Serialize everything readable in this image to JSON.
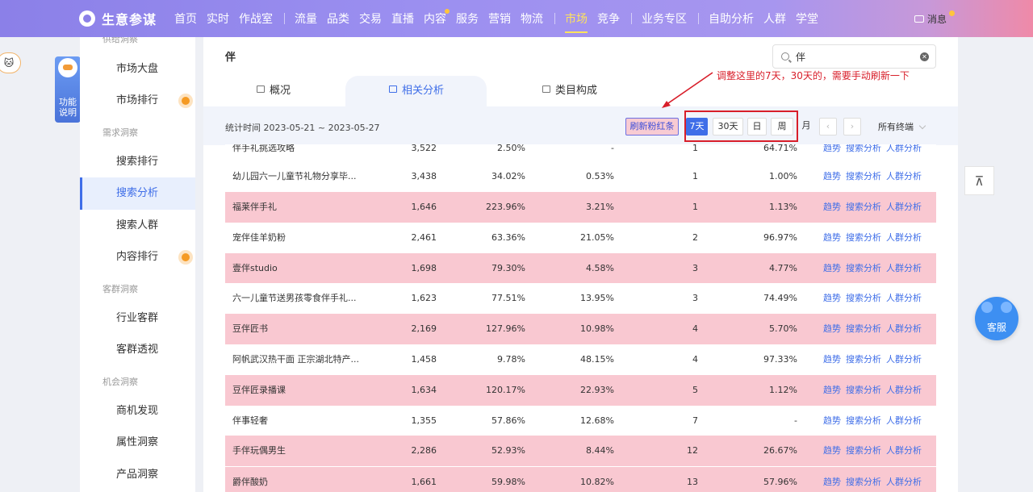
{
  "topnav": {
    "brand": "生意参谋",
    "items_group1": [
      "首页",
      "实时",
      "作战室"
    ],
    "items_group2": [
      "流量",
      "品类",
      "交易",
      "直播",
      "内容",
      "服务",
      "营销",
      "物流"
    ],
    "items_group3": [
      "市场",
      "竞争"
    ],
    "items_group4": [
      "业务专区"
    ],
    "items_group5": [
      "自助分析",
      "人群",
      "学堂"
    ],
    "active": "市场",
    "message": "消息"
  },
  "func_tab": {
    "line1": "功能",
    "line2": "说明"
  },
  "sidebar": {
    "top_section": "供给洞察",
    "items": [
      {
        "label": "市场大盘"
      },
      {
        "label": "市场排行"
      },
      {
        "label": "需求洞察",
        "section": true
      },
      {
        "label": "搜索排行"
      },
      {
        "label": "搜索分析"
      },
      {
        "label": "搜索人群"
      },
      {
        "label": "内容排行"
      },
      {
        "label": "客群洞察",
        "section": true
      },
      {
        "label": "行业客群"
      },
      {
        "label": "客群透视"
      },
      {
        "label": "机会洞察",
        "section": true
      },
      {
        "label": "商机发现"
      },
      {
        "label": "属性洞察"
      },
      {
        "label": "产品洞察"
      }
    ]
  },
  "main": {
    "keyword": "伴",
    "search_value": "伴",
    "tabs": [
      "概况",
      "相关分析",
      "类目构成"
    ],
    "active_tab": "相关分析",
    "stat_time": "统计时间 2023-05-21 ~ 2023-05-27",
    "refresh_button": "刷新粉红条",
    "period_buttons": [
      "7天",
      "30天",
      "日",
      "周",
      "月"
    ],
    "active_period": "7天",
    "terminal": "所有终端",
    "annotation": "调整这里的7天，30天的，需要手动刷新一下"
  },
  "table": {
    "ops": [
      "趋势",
      "搜索分析",
      "人群分析"
    ],
    "rows": [
      {
        "name": "伴手礼挑选攻略",
        "a": "3,522",
        "b": "2.50%",
        "c": "-",
        "d": "1",
        "e": "64.71%",
        "pink": false
      },
      {
        "name": "幼儿园六一儿童节礼物分享毕...",
        "a": "3,438",
        "b": "34.02%",
        "c": "0.53%",
        "d": "1",
        "e": "1.00%",
        "pink": false
      },
      {
        "name": "福莱伴手礼",
        "a": "1,646",
        "b": "223.96%",
        "c": "3.21%",
        "d": "1",
        "e": "1.13%",
        "pink": true
      },
      {
        "name": "宠伴佳羊奶粉",
        "a": "2,461",
        "b": "63.36%",
        "c": "21.05%",
        "d": "2",
        "e": "96.97%",
        "pink": false
      },
      {
        "name": "壹伴studio",
        "a": "1,698",
        "b": "79.30%",
        "c": "4.58%",
        "d": "3",
        "e": "4.77%",
        "pink": true
      },
      {
        "name": "六一儿童节送男孩零食伴手礼...",
        "a": "1,623",
        "b": "77.51%",
        "c": "13.95%",
        "d": "3",
        "e": "74.49%",
        "pink": false
      },
      {
        "name": "豆伴匠书",
        "a": "2,169",
        "b": "127.96%",
        "c": "10.98%",
        "d": "4",
        "e": "5.70%",
        "pink": true
      },
      {
        "name": "阿帆武汉热干面 正宗湖北特产...",
        "a": "1,458",
        "b": "9.78%",
        "c": "48.15%",
        "d": "4",
        "e": "97.33%",
        "pink": false
      },
      {
        "name": "豆伴匠录播课",
        "a": "1,634",
        "b": "120.17%",
        "c": "22.93%",
        "d": "5",
        "e": "1.12%",
        "pink": true
      },
      {
        "name": "伴事轻奢",
        "a": "1,355",
        "b": "57.86%",
        "c": "12.68%",
        "d": "7",
        "e": "-",
        "pink": false
      },
      {
        "name": "手伴玩偶男生",
        "a": "2,286",
        "b": "52.93%",
        "c": "8.44%",
        "d": "12",
        "e": "26.67%",
        "pink": true
      },
      {
        "name": "爵伴酸奶",
        "a": "1,661",
        "b": "59.98%",
        "c": "10.82%",
        "d": "13",
        "e": "57.96%",
        "pink": true
      }
    ]
  },
  "float": {
    "to_top": "⊼",
    "kefu": "客服"
  },
  "colors": {
    "accent": "#3f6ee8",
    "pink_row": "#f9c8d1",
    "annotation_red": "#d81e2a"
  }
}
